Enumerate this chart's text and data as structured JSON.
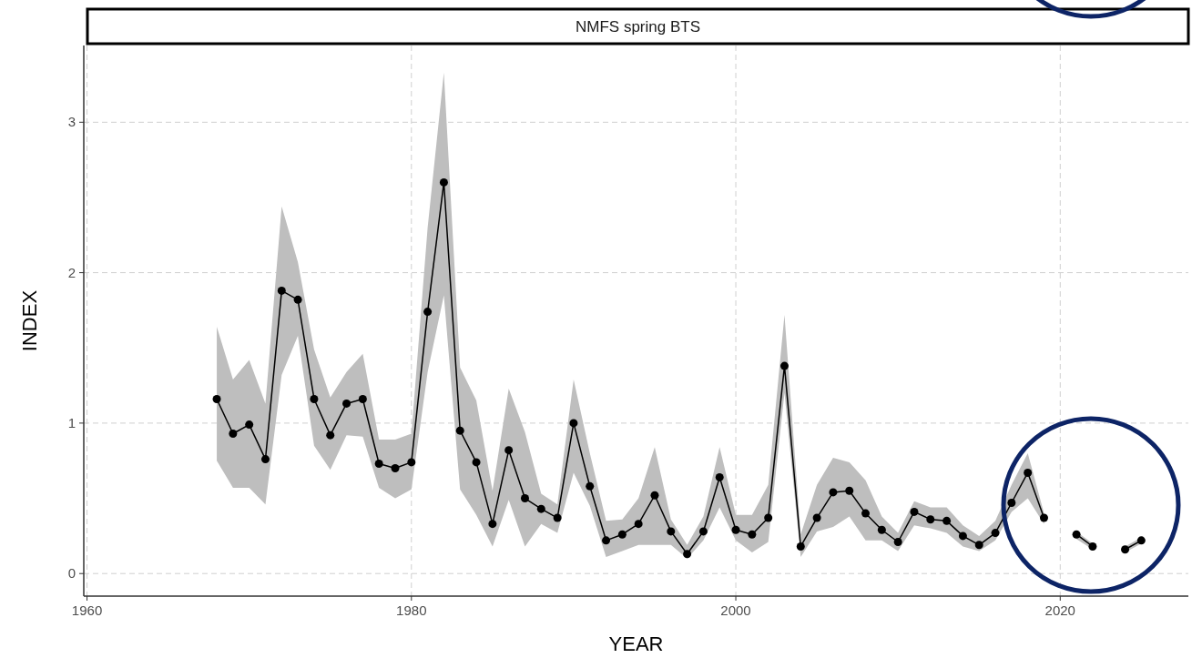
{
  "chart_data": {
    "type": "line",
    "title": "NMFS spring BTS",
    "xlabel": "YEAR",
    "ylabel": "INDEX",
    "x": [
      1968,
      1969,
      1970,
      1971,
      1972,
      1973,
      1974,
      1975,
      1976,
      1977,
      1978,
      1979,
      1980,
      1981,
      1982,
      1983,
      1984,
      1985,
      1986,
      1987,
      1988,
      1989,
      1990,
      1991,
      1992,
      1993,
      1994,
      1995,
      1996,
      1997,
      1998,
      1999,
      2000,
      2001,
      2002,
      2003,
      2004,
      2005,
      2006,
      2007,
      2008,
      2009,
      2010,
      2011,
      2012,
      2013,
      2014,
      2015,
      2016,
      2017,
      2018,
      2019,
      2020,
      2021,
      2022,
      2023,
      2024,
      2025
    ],
    "series": [
      {
        "color": "#000000",
        "values": [
          1.16,
          0.93,
          0.99,
          0.76,
          1.88,
          1.82,
          1.16,
          0.92,
          1.13,
          1.16,
          0.73,
          0.7,
          0.74,
          1.74,
          2.6,
          0.95,
          0.74,
          0.33,
          0.82,
          0.5,
          0.43,
          0.37,
          1.0,
          0.58,
          0.22,
          0.26,
          0.33,
          0.52,
          0.28,
          0.13,
          0.28,
          0.64,
          0.29,
          0.26,
          0.37,
          1.38,
          0.18,
          0.37,
          0.54,
          0.55,
          0.4,
          0.29,
          0.21,
          0.41,
          0.36,
          0.35,
          0.25,
          0.19,
          0.27,
          0.47,
          0.67,
          0.37,
          null,
          0.26,
          0.18,
          null,
          0.16,
          0.22
        ],
        "lower": [
          0.75,
          0.57,
          0.57,
          0.46,
          1.32,
          1.58,
          0.85,
          0.69,
          0.92,
          0.91,
          0.57,
          0.5,
          0.56,
          1.34,
          1.85,
          0.56,
          0.39,
          0.18,
          0.49,
          0.18,
          0.33,
          0.27,
          0.67,
          0.45,
          0.11,
          0.15,
          0.19,
          0.19,
          0.19,
          0.1,
          0.22,
          0.44,
          0.22,
          0.14,
          0.21,
          1.2,
          0.11,
          0.28,
          0.31,
          0.38,
          0.22,
          0.22,
          0.15,
          0.32,
          0.3,
          0.27,
          0.18,
          0.15,
          0.22,
          0.41,
          0.5,
          0.33,
          null,
          0.23,
          0.16,
          null,
          0.14,
          0.2
        ],
        "upper": [
          1.64,
          1.29,
          1.42,
          1.13,
          2.44,
          2.07,
          1.49,
          1.17,
          1.34,
          1.46,
          0.89,
          0.89,
          0.93,
          2.3,
          3.33,
          1.37,
          1.15,
          0.55,
          1.23,
          0.94,
          0.53,
          0.46,
          1.29,
          0.8,
          0.35,
          0.36,
          0.5,
          0.84,
          0.36,
          0.19,
          0.38,
          0.84,
          0.39,
          0.39,
          0.59,
          1.72,
          0.26,
          0.59,
          0.77,
          0.74,
          0.62,
          0.38,
          0.27,
          0.48,
          0.44,
          0.44,
          0.32,
          0.25,
          0.35,
          0.59,
          0.8,
          0.4,
          null,
          0.28,
          0.2,
          null,
          0.18,
          0.24
        ]
      }
    ],
    "xlim": [
      1959.8,
      2027.9
    ],
    "xticks": [
      1960,
      1980,
      2000,
      2020
    ],
    "ylim": [
      -0.15,
      3.51
    ],
    "yticks": [
      0,
      1,
      2,
      3
    ],
    "grid": true,
    "marker": "circle",
    "line_style": "solid"
  }
}
